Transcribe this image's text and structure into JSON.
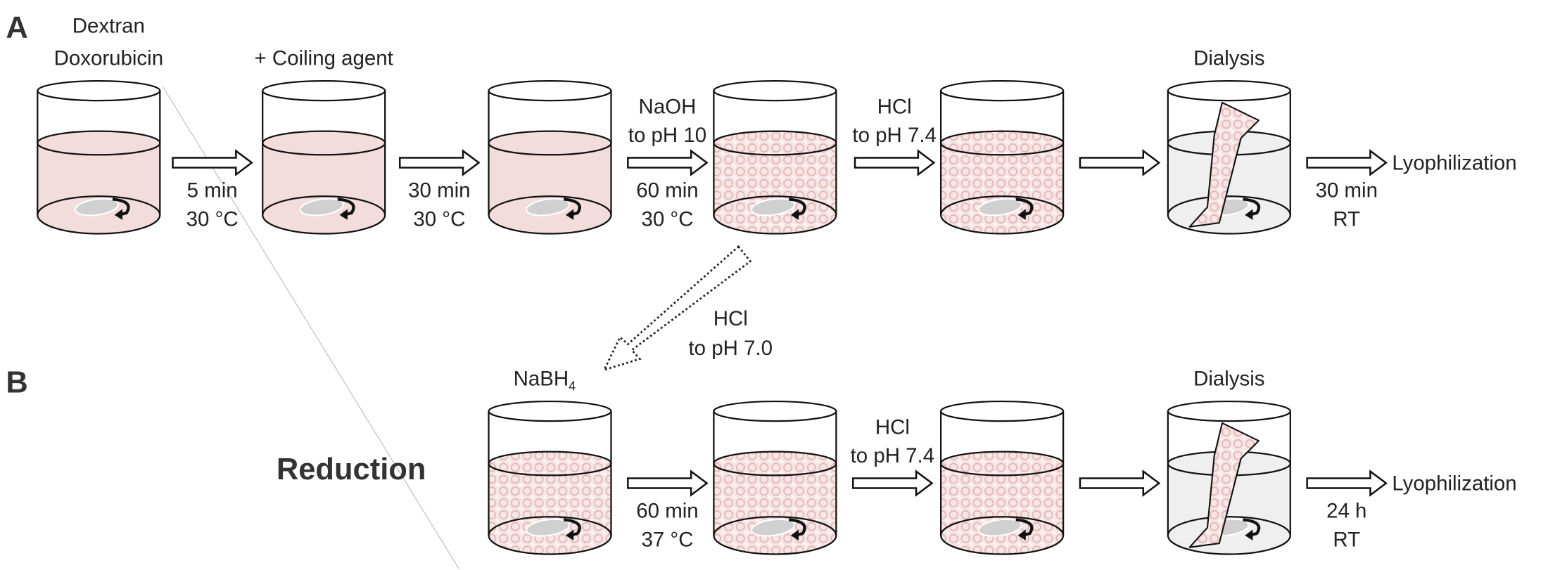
{
  "colors": {
    "liquid": "#f3dcdc",
    "pattern": "#e8b8b8",
    "dialysis_water": "#efefef",
    "stir_bar": "#d0d0d0"
  },
  "panel_a": {
    "letter": "A",
    "top_labels": [
      "Dextran",
      "Doxorubicin",
      "+ Coiling agent",
      "Dialysis"
    ],
    "arrow_labels": [
      {
        "below": [
          "5 min",
          "30 °C"
        ]
      },
      {
        "below": [
          "30 min",
          "30 °C"
        ]
      },
      {
        "above": [
          "NaOH",
          "to pH 10"
        ],
        "below": [
          "60 min",
          "30 °C"
        ]
      },
      {
        "above": [
          "HCl",
          "to pH 7.4"
        ]
      },
      {},
      {
        "below": [
          "30 min",
          "RT"
        ]
      }
    ],
    "end_label": "Lyophilization"
  },
  "branch": {
    "labels": [
      "HCl",
      "to pH 7.0"
    ]
  },
  "panel_b": {
    "letter": "B",
    "title": "Reduction",
    "reagent": "NaBH",
    "reagent_sub": "4",
    "top_label": "Dialysis",
    "arrow_labels": [
      {
        "below": [
          "60 min",
          "37 °C"
        ]
      },
      {
        "above": [
          "HCl",
          "to pH 7.4"
        ]
      },
      {},
      {
        "below": [
          "24 h",
          "RT"
        ]
      }
    ],
    "end_label": "Lyophilization"
  }
}
